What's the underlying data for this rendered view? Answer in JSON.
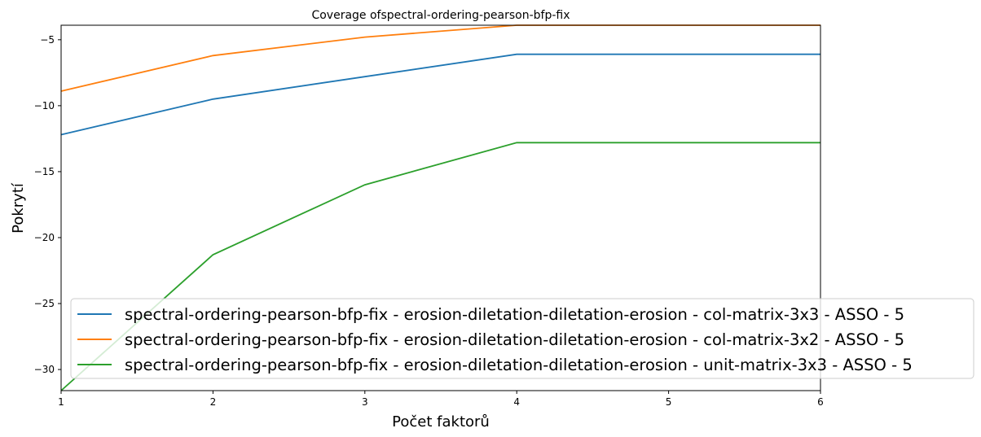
{
  "chart_data": {
    "type": "line",
    "title": "Coverage ofspectral-ordering-pearson-bfp-fix",
    "xlabel": "Počet faktorů",
    "ylabel": "Pokrytí",
    "x": [
      1,
      2,
      3,
      4,
      5,
      6
    ],
    "xlim": [
      1,
      6
    ],
    "ylim": [
      -31.6,
      -3.9
    ],
    "xticks": [
      "1",
      "2",
      "3",
      "4",
      "5",
      "6"
    ],
    "yticks": [
      -30,
      -25,
      -20,
      -15,
      -10,
      -5
    ],
    "ytick_labels": [
      "−30",
      "−25",
      "−20",
      "−15",
      "−10",
      "−5"
    ],
    "grid": false,
    "legend_position": "lower-right",
    "series": [
      {
        "name": "spectral-ordering-pearson-bfp-fix - erosion-diletation-diletation-erosion - col-matrix-3x3 - ASSO - 5",
        "color": "#1f77b4",
        "values": [
          -12.2,
          -9.5,
          -7.8,
          -6.1,
          -6.1,
          -6.1
        ]
      },
      {
        "name": "spectral-ordering-pearson-bfp-fix - erosion-diletation-diletation-erosion - col-matrix-3x2 - ASSO - 5",
        "color": "#ff7f0e",
        "values": [
          -8.9,
          -6.2,
          -4.8,
          -3.9,
          -3.9,
          -3.9
        ]
      },
      {
        "name": "spectral-ordering-pearson-bfp-fix - erosion-diletation-diletation-erosion - unit-matrix-3x3 - ASSO - 5",
        "color": "#2ca02c",
        "values": [
          -31.6,
          -21.3,
          -16.0,
          -12.8,
          -12.8,
          -12.8
        ]
      }
    ]
  }
}
